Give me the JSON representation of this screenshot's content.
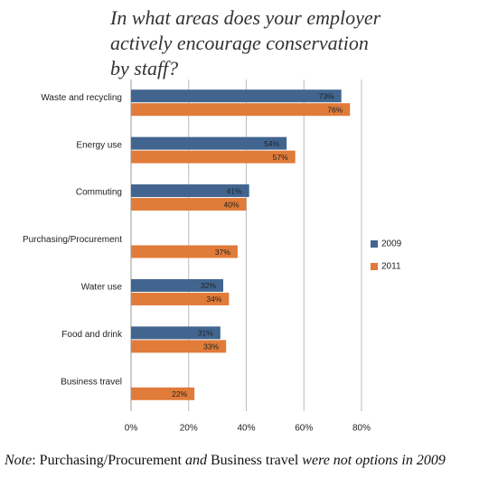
{
  "chart_data": {
    "type": "bar",
    "orientation": "horizontal",
    "title": [
      "In what areas does your employer",
      "actively encourage conservation",
      "by staff?"
    ],
    "categories": [
      "Waste and recycling",
      "Energy use",
      "Commuting",
      "Purchasing/Procurement",
      "Water use",
      "Food and drink",
      "Business travel"
    ],
    "series": [
      {
        "name": "2009",
        "color": "#41658f",
        "values": [
          73,
          54,
          41,
          null,
          32,
          31,
          null
        ],
        "value_labels": [
          "73%",
          "54%",
          "41%",
          null,
          "32%",
          "31%",
          null
        ]
      },
      {
        "name": "2011",
        "color": "#e07b39",
        "values": [
          76,
          57,
          40,
          37,
          34,
          33,
          22
        ],
        "value_labels": [
          "76%",
          "57%",
          "40%",
          "37%",
          "34%",
          "33%",
          "22%"
        ]
      }
    ],
    "xlim": [
      0,
      80
    ],
    "xticks": [
      {
        "value": 0,
        "label": "0%"
      },
      {
        "value": 20,
        "label": "20%"
      },
      {
        "value": 40,
        "label": "40%"
      },
      {
        "value": 60,
        "label": "60%"
      },
      {
        "value": 80,
        "label": "80%"
      }
    ],
    "grid": true,
    "legend": "right",
    "note": [
      "Note",
      ": Purchasing/Procurement ",
      "and",
      " Business travel ",
      "were not options in 2009"
    ]
  }
}
